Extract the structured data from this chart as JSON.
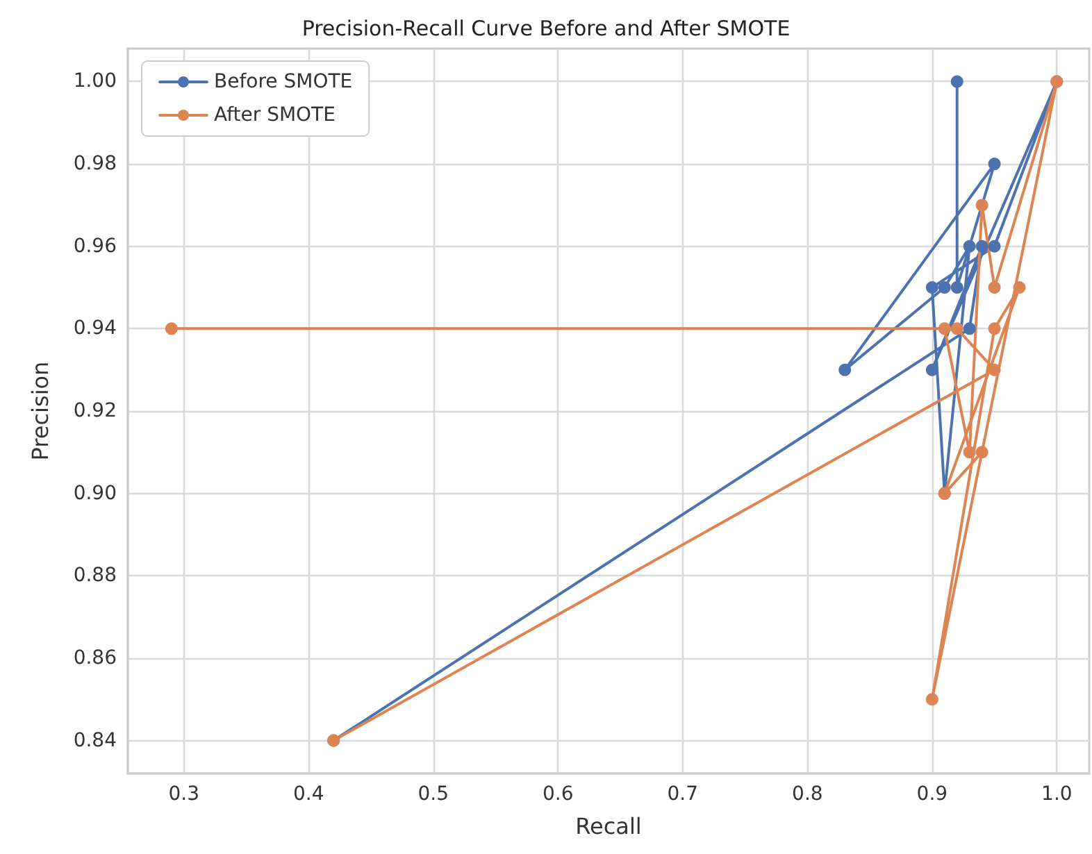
{
  "chart_data": {
    "type": "line",
    "title": "Precision-Recall Curve Before and After SMOTE",
    "xlabel": "Recall",
    "ylabel": "Precision",
    "series": [
      {
        "name": "Before SMOTE",
        "color": "#4c72b0",
        "x": [
          0.92,
          0.92,
          0.95,
          0.83,
          0.91,
          0.93,
          0.91,
          0.9,
          0.95,
          1.0,
          0.9,
          0.94,
          0.93,
          0.42
        ],
        "values": [
          1.0,
          0.95,
          0.98,
          0.93,
          0.95,
          0.96,
          0.9,
          0.95,
          0.96,
          1.0,
          0.93,
          0.96,
          0.94,
          0.84
        ]
      },
      {
        "name": "After SMOTE",
        "color": "#dd8452",
        "x": [
          0.94,
          0.91,
          0.97,
          0.95,
          0.9,
          1.0,
          0.95,
          0.94,
          0.93,
          0.91,
          0.29,
          0.92,
          0.95,
          0.42
        ],
        "values": [
          0.91,
          0.9,
          0.95,
          0.94,
          0.85,
          1.0,
          0.95,
          0.97,
          0.91,
          0.94,
          0.94,
          0.94,
          0.93,
          0.84
        ]
      }
    ],
    "xlim": [
      0.255,
      1.026
    ],
    "xticks": [
      0.3,
      0.4,
      0.5,
      0.6,
      0.7,
      0.8,
      0.9,
      {
        "value": 1.0,
        "label": "1.0"
      }
    ],
    "ylim": [
      0.832,
      1.008
    ],
    "yticks": [
      0.84,
      0.86,
      0.88,
      {
        "value": 0.9,
        "label": "0.90"
      },
      0.92,
      0.94,
      0.96,
      0.98,
      {
        "value": 1.0,
        "label": "1.00"
      }
    ],
    "grid": true,
    "legend": "top left",
    "marker": "circle",
    "line_style": "solid"
  }
}
